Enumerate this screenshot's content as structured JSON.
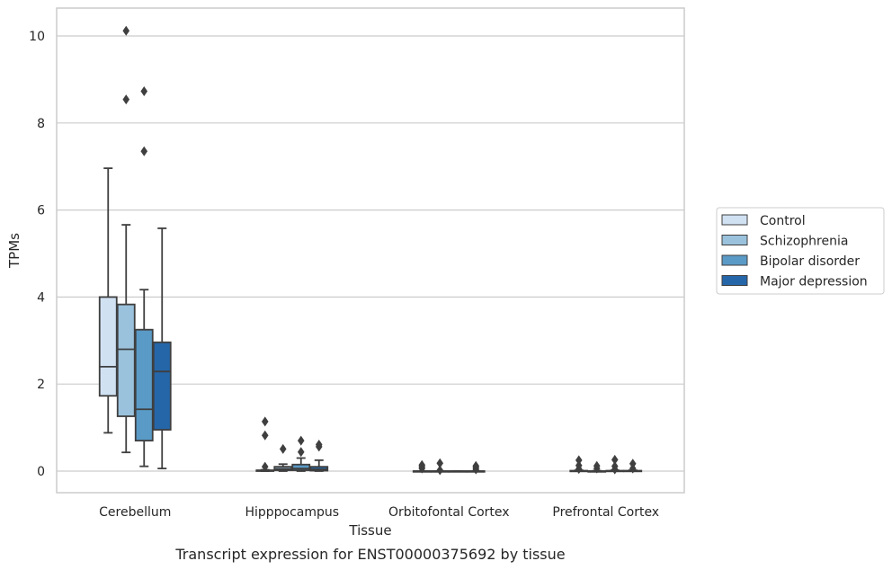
{
  "chart_data": {
    "type": "box",
    "title": "Transcript expression for ENST00000375692 by tissue",
    "xlabel": "Tissue",
    "ylabel": "TPMs",
    "ylim": [
      -0.5,
      10.65
    ],
    "yticks": [
      0,
      2,
      4,
      6,
      8,
      10
    ],
    "grid": "horizontal",
    "legend_position": "right",
    "categories": [
      "Cerebellum",
      "Hipppocampus",
      "Orbitofontal Cortex",
      "Prefrontal Cortex"
    ],
    "series": [
      {
        "name": "Control",
        "color": "#d0e1f2",
        "boxes": [
          {
            "whislo": 0.88,
            "q1": 1.73,
            "med": 2.4,
            "q3": 4.0,
            "whishi": 6.96,
            "fliers": []
          },
          {
            "whislo": 0.0,
            "q1": 0.0,
            "med": 0.01,
            "q3": 0.02,
            "whishi": 0.03,
            "fliers": [
              0.1,
              0.82,
              1.14
            ]
          },
          {
            "whislo": 0.0,
            "q1": 0.0,
            "med": 0.0,
            "q3": 0.0,
            "whishi": 0.0,
            "fliers": [
              0.06,
              0.1,
              0.14
            ]
          },
          {
            "whislo": 0.0,
            "q1": 0.0,
            "med": 0.0,
            "q3": 0.01,
            "whishi": 0.02,
            "fliers": [
              0.05,
              0.13,
              0.25
            ]
          }
        ]
      },
      {
        "name": "Schizophrenia",
        "color": "#9ac2dc",
        "boxes": [
          {
            "whislo": 0.43,
            "q1": 1.26,
            "med": 2.8,
            "q3": 3.83,
            "whishi": 5.66,
            "fliers": [
              8.54,
              10.12
            ]
          },
          {
            "whislo": 0.0,
            "q1": 0.02,
            "med": 0.05,
            "q3": 0.1,
            "whishi": 0.16,
            "fliers": [
              0.51
            ]
          },
          {
            "whislo": 0.0,
            "q1": 0.0,
            "med": 0.0,
            "q3": 0.0,
            "whishi": 0.0,
            "fliers": [
              0.02,
              0.18
            ]
          },
          {
            "whislo": 0.0,
            "q1": 0.0,
            "med": 0.0,
            "q3": 0.0,
            "whishi": 0.01,
            "fliers": [
              0.06,
              0.12
            ]
          }
        ]
      },
      {
        "name": "Bipolar disorder",
        "color": "#5a9ac6",
        "boxes": [
          {
            "whislo": 0.11,
            "q1": 0.7,
            "med": 1.42,
            "q3": 3.25,
            "whishi": 4.17,
            "fliers": [
              7.35,
              8.73
            ]
          },
          {
            "whislo": 0.0,
            "q1": 0.02,
            "med": 0.06,
            "q3": 0.15,
            "whishi": 0.3,
            "fliers": [
              0.44,
              0.7
            ]
          },
          {
            "whislo": 0.0,
            "q1": 0.0,
            "med": 0.0,
            "q3": 0.0,
            "whishi": 0.0,
            "fliers": []
          },
          {
            "whislo": 0.0,
            "q1": 0.0,
            "med": 0.0,
            "q3": 0.01,
            "whishi": 0.02,
            "fliers": [
              0.04,
              0.11,
              0.26
            ]
          }
        ]
      },
      {
        "name": "Major depression",
        "color": "#2566a8",
        "boxes": [
          {
            "whislo": 0.06,
            "q1": 0.95,
            "med": 2.29,
            "q3": 2.96,
            "whishi": 5.58,
            "fliers": []
          },
          {
            "whislo": 0.0,
            "q1": 0.01,
            "med": 0.04,
            "q3": 0.1,
            "whishi": 0.25,
            "fliers": [
              0.56,
              0.61
            ]
          },
          {
            "whislo": 0.0,
            "q1": 0.0,
            "med": 0.0,
            "q3": 0.0,
            "whishi": 0.0,
            "fliers": [
              0.04,
              0.08,
              0.12
            ]
          },
          {
            "whislo": 0.0,
            "q1": 0.0,
            "med": 0.0,
            "q3": 0.01,
            "whishi": 0.02,
            "fliers": [
              0.06,
              0.17
            ]
          }
        ]
      }
    ]
  }
}
